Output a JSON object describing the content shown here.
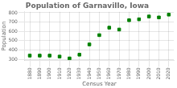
{
  "chart_data": {
    "type": "scatter",
    "title": "Population of Garnavillo, Iowa",
    "xlabel": "Census Year",
    "ylabel": "Population",
    "x": [
      1880,
      1890,
      1900,
      1910,
      1920,
      1930,
      1940,
      1950,
      1960,
      1970,
      1980,
      1990,
      2000,
      2010,
      2020
    ],
    "values": [
      340,
      340,
      340,
      330,
      310,
      350,
      460,
      560,
      640,
      620,
      720,
      730,
      760,
      750,
      780
    ],
    "color": "#008000",
    "marker": "square",
    "xlim": [
      1875,
      2025
    ],
    "xticks": [
      1880,
      1890,
      1900,
      1910,
      1920,
      1930,
      1940,
      1950,
      1960,
      1970,
      1980,
      1990,
      2000,
      2010,
      2020
    ],
    "ylim": [
      290,
      810
    ],
    "yticks": [
      300,
      400,
      500,
      600,
      700,
      800
    ],
    "grid": true
  }
}
